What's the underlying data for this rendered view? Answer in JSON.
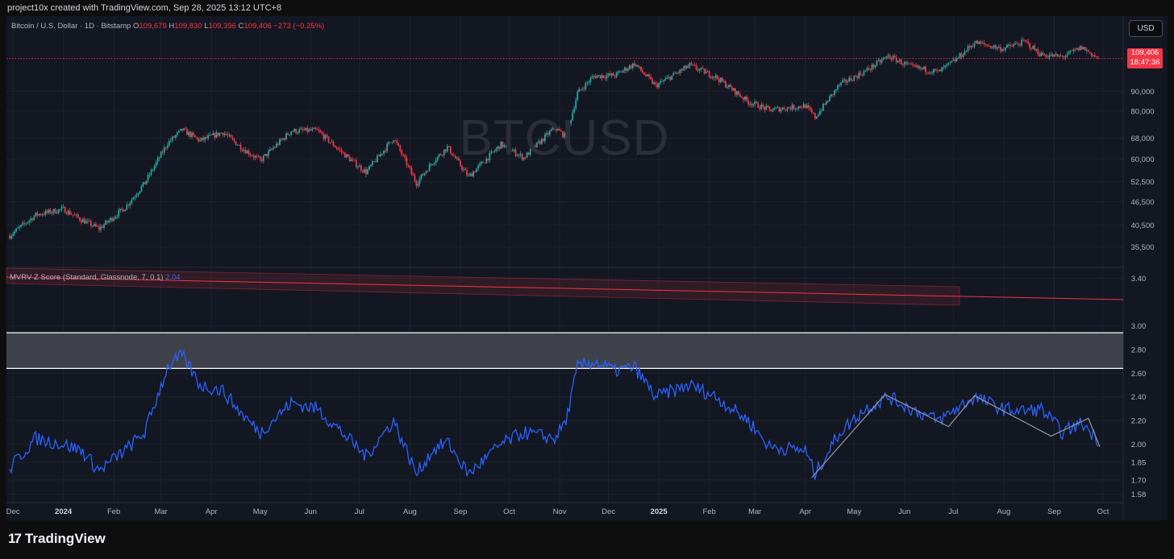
{
  "header": {
    "created_by": "project10x created with TradingView.com, Sep 28, 2025 13:12 UTC+8",
    "symbol": "Bitcoin / U.S. Dollar · 1D · Bitstamp",
    "ohlc": {
      "o_label": "O",
      "o": "109,679",
      "h_label": "H",
      "h": "109,830",
      "l_label": "L",
      "l": "109,396",
      "c_label": "C",
      "c": "109,406",
      "change": "−273 (−0.25%)"
    }
  },
  "currency_button": "USD",
  "watermark": "BTCUSD",
  "last_price": {
    "price": "109,406",
    "countdown": "18:47:36"
  },
  "indicator": {
    "label": "MVRV Z Score (Standard, Glassnode, 7, 0.1)",
    "value": "2.04"
  },
  "branding": {
    "logo_mark": "17",
    "name": "TradingView"
  },
  "colors": {
    "bg": "#131722",
    "up": "#26a69a",
    "down": "#f23645",
    "indicator": "#2962ff",
    "grid": "#1e222d"
  },
  "chart_data": [
    {
      "type": "candlestick",
      "title": "Bitcoin / U.S. Dollar · 1D · Bitstamp",
      "x_tick_labels": [
        "Dec",
        "2024",
        "Feb",
        "Mar",
        "Apr",
        "May",
        "Jun",
        "Jul",
        "Aug",
        "Sep",
        "Oct",
        "Nov",
        "Dec",
        "2025",
        "Feb",
        "Mar",
        "Apr",
        "May",
        "Jun",
        "Jul",
        "Aug",
        "Sep",
        "Oct"
      ],
      "y_tick_labels": [
        "35,500",
        "40,500",
        "46,500",
        "52,500",
        "60,000",
        "68,000",
        "80,000",
        "90,000"
      ],
      "y_scale": "log",
      "ylim": [
        32500,
        125000
      ],
      "last_close": 109406,
      "x": [
        "2023-11-29",
        "2023-12-15",
        "2024-01-01",
        "2024-01-12",
        "2024-01-23",
        "2024-02-08",
        "2024-02-20",
        "2024-03-05",
        "2024-03-14",
        "2024-03-25",
        "2024-04-08",
        "2024-04-20",
        "2024-05-01",
        "2024-05-20",
        "2024-06-05",
        "2024-06-24",
        "2024-07-05",
        "2024-07-22",
        "2024-08-05",
        "2024-08-15",
        "2024-08-24",
        "2024-09-06",
        "2024-09-26",
        "2024-10-10",
        "2024-10-29",
        "2024-11-05",
        "2024-11-12",
        "2024-11-22",
        "2024-12-05",
        "2024-12-17",
        "2024-12-30",
        "2025-01-20",
        "2025-02-05",
        "2025-02-25",
        "2025-03-10",
        "2025-04-01",
        "2025-04-07",
        "2025-04-22",
        "2025-05-08",
        "2025-05-22",
        "2025-06-05",
        "2025-06-22",
        "2025-07-03",
        "2025-07-14",
        "2025-07-31",
        "2025-08-14",
        "2025-08-24",
        "2025-09-06",
        "2025-09-18",
        "2025-09-28"
      ],
      "close": [
        38000,
        43000,
        44500,
        41800,
        39600,
        45000,
        52000,
        66000,
        71500,
        67000,
        70500,
        64000,
        59500,
        71000,
        71200,
        60500,
        55500,
        68000,
        52000,
        59000,
        64500,
        54000,
        65500,
        60500,
        72500,
        68500,
        89000,
        98500,
        99000,
        106000,
        93000,
        105000,
        98000,
        84500,
        80500,
        82500,
        77000,
        93500,
        101500,
        111000,
        104000,
        101000,
        109000,
        120500,
        116000,
        121000,
        112000,
        110500,
        117000,
        109406
      ]
    },
    {
      "type": "line",
      "title": "MVRV Z Score (Standard, Glassnode, 7, 0.1)",
      "y_tick_labels": [
        "1.58",
        "1.70",
        "1.85",
        "2.00",
        "2.20",
        "2.40",
        "2.60",
        "2.80",
        "3.00",
        "3.40"
      ],
      "ylim": [
        1.55,
        3.45
      ],
      "last_value": 2.04,
      "series": [
        {
          "x": [
            "2023-11-29",
            "2023-12-15",
            "2024-01-01",
            "2024-01-12",
            "2024-01-23",
            "2024-02-08",
            "2024-02-20",
            "2024-03-05",
            "2024-03-14",
            "2024-03-25",
            "2024-04-08",
            "2024-04-20",
            "2024-05-01",
            "2024-05-20",
            "2024-06-05",
            "2024-06-24",
            "2024-07-05",
            "2024-07-22",
            "2024-08-05",
            "2024-08-15",
            "2024-08-24",
            "2024-09-06",
            "2024-09-26",
            "2024-10-10",
            "2024-10-29",
            "2024-11-05",
            "2024-11-12",
            "2024-11-22",
            "2024-12-05",
            "2024-12-17",
            "2024-12-30",
            "2025-01-20",
            "2025-02-05",
            "2025-02-25",
            "2025-03-10",
            "2025-04-01",
            "2025-04-07",
            "2025-04-22",
            "2025-05-08",
            "2025-05-22",
            "2025-06-05",
            "2025-06-22",
            "2025-07-03",
            "2025-07-14",
            "2025-07-31",
            "2025-08-14",
            "2025-08-24",
            "2025-09-06",
            "2025-09-18",
            "2025-09-28"
          ],
          "values": [
            1.8,
            2.05,
            2.0,
            1.95,
            1.78,
            1.95,
            2.1,
            2.65,
            2.75,
            2.5,
            2.45,
            2.25,
            2.1,
            2.35,
            2.3,
            2.05,
            1.9,
            2.2,
            1.75,
            1.95,
            2.02,
            1.75,
            2.0,
            2.1,
            2.05,
            2.2,
            2.65,
            2.7,
            2.62,
            2.65,
            2.4,
            2.5,
            2.4,
            2.2,
            1.98,
            1.95,
            1.75,
            2.1,
            2.3,
            2.4,
            2.3,
            2.2,
            2.3,
            2.4,
            2.3,
            2.28,
            2.3,
            2.1,
            2.18,
            2.04
          ]
        }
      ],
      "zone": {
        "from": 2.64,
        "to": 2.94
      }
    }
  ]
}
